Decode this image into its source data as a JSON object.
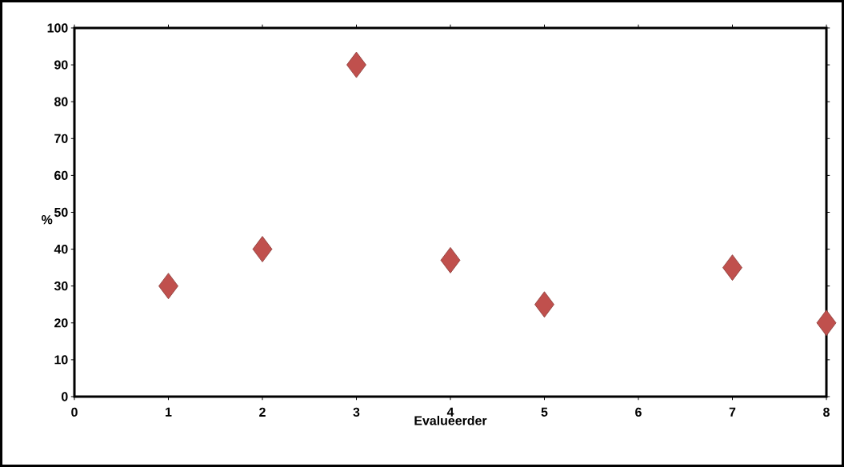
{
  "chart_data": {
    "type": "scatter",
    "xlabel": "Evalueerder",
    "ylabel": "%",
    "x": [
      1,
      2,
      3,
      4,
      5,
      7,
      8
    ],
    "values": [
      30,
      40,
      90,
      37,
      25,
      35,
      20
    ],
    "color": "#c0504d",
    "marker": "diamond",
    "xlim": [
      0,
      8
    ],
    "ylim": [
      0,
      100
    ],
    "xticks": [
      0,
      1,
      2,
      3,
      4,
      5,
      6,
      7,
      8
    ],
    "yticks": [
      0,
      10,
      20,
      30,
      40,
      50,
      60,
      70,
      80,
      90,
      100
    ]
  }
}
